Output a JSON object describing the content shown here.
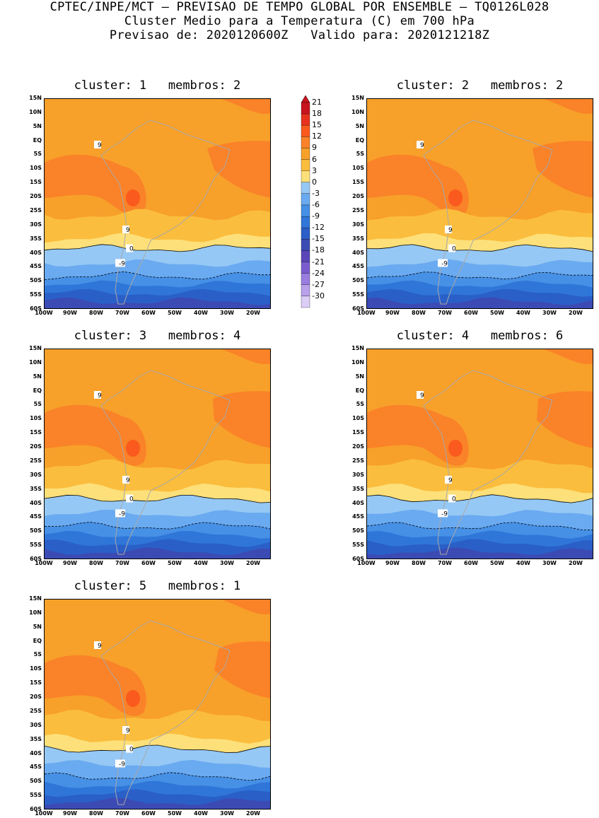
{
  "header": {
    "line1": "CPTEC/INPE/MCT — PREVISAO DE TEMPO GLOBAL POR ENSEMBLE — TQ0126L028",
    "line2": "Cluster Medio para a Temperatura (C) em 700 hPa",
    "line3": "Previsao de: 2020120600Z   Valido para: 2020121218Z"
  },
  "panels": [
    {
      "title": "cluster: 1   membros: 2"
    },
    {
      "title": "cluster: 2   membros: 2"
    },
    {
      "title": "cluster: 3   membros: 4"
    },
    {
      "title": "cluster: 4   membros: 6"
    },
    {
      "title": "cluster: 5   membros: 1"
    }
  ],
  "axes": {
    "y_ticks": [
      "15N",
      "10N",
      "5N",
      "EQ",
      "5S",
      "10S",
      "15S",
      "20S",
      "25S",
      "30S",
      "35S",
      "40S",
      "45S",
      "50S",
      "55S",
      "60S"
    ],
    "x_ticks": [
      "100W",
      "90W",
      "80W",
      "70W",
      "60W",
      "50W",
      "40W",
      "30W",
      "20W"
    ]
  },
  "contour_labels": {
    "warm": "9",
    "zero": "0",
    "cold": "-9"
  },
  "colorbar": {
    "levels": [
      "21",
      "18",
      "15",
      "12",
      "9",
      "6",
      "3",
      "0",
      "-3",
      "-6",
      "-9",
      "-12",
      "-15",
      "-18",
      "-21",
      "-24",
      "-27",
      "-30"
    ],
    "colors": [
      "#c8141e",
      "#e6321e",
      "#fa5a1e",
      "#fa8228",
      "#f7a02a",
      "#fbbd3d",
      "#fde07a",
      "#96c8f5",
      "#6aaaf0",
      "#4690e6",
      "#2f76d8",
      "#2a5fc8",
      "#3c4bb4",
      "#5a46b9",
      "#7a5ccf",
      "#9a7ddf",
      "#b9a0eb",
      "#dccdf6"
    ]
  }
}
